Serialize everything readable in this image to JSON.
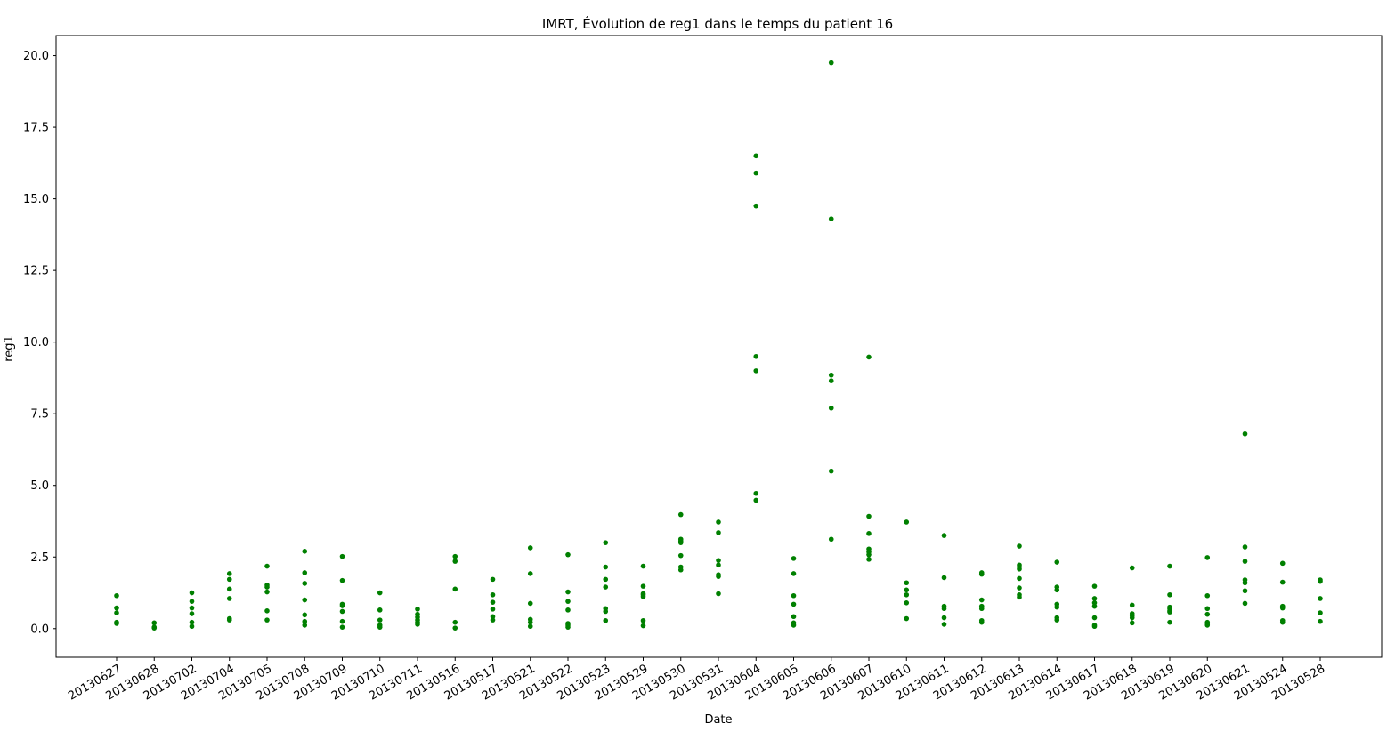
{
  "chart_data": {
    "type": "scatter",
    "title": "IMRT, Évolution de reg1 dans le temps du patient 16",
    "xlabel": "Date",
    "ylabel": "reg1",
    "ylim": [
      -1.0,
      20.7
    ],
    "yticks": [
      "0.0",
      "2.5",
      "5.0",
      "7.5",
      "10.0",
      "12.5",
      "15.0",
      "17.5",
      "20.0"
    ],
    "grid": false,
    "marker_color": "#008000",
    "categories": [
      "20130627",
      "20130628",
      "20130702",
      "20130704",
      "20130705",
      "20130708",
      "20130709",
      "20130710",
      "20130711",
      "20130516",
      "20130517",
      "20130521",
      "20130522",
      "20130523",
      "20130529",
      "20130530",
      "20130531",
      "20130604",
      "20130605",
      "20130606",
      "20130607",
      "20130610",
      "20130611",
      "20130612",
      "20130613",
      "20130614",
      "20130617",
      "20130618",
      "20130619",
      "20130620",
      "20130621",
      "20130524",
      "20130528"
    ],
    "series": [
      {
        "values": [
          [
            1.15,
            0.72,
            0.55,
            0.22,
            0.18
          ],
          [
            0.2,
            0.05,
            0.02
          ],
          [
            1.25,
            0.95,
            0.72,
            0.52,
            0.22,
            0.08
          ],
          [
            1.92,
            1.72,
            1.38,
            1.05,
            0.35,
            0.3
          ],
          [
            2.18,
            1.52,
            1.45,
            1.28,
            0.62,
            0.3
          ],
          [
            2.7,
            1.95,
            1.58,
            1.0,
            0.48,
            0.25,
            0.12
          ],
          [
            2.52,
            1.68,
            0.85,
            0.8,
            0.6,
            0.25,
            0.05
          ],
          [
            1.25,
            0.65,
            0.3,
            0.12,
            0.05
          ],
          [
            0.68,
            0.5,
            0.4,
            0.3,
            0.22,
            0.15
          ],
          [
            2.52,
            2.35,
            1.38,
            0.22,
            0.02
          ],
          [
            1.72,
            1.18,
            0.92,
            0.68,
            0.42,
            0.3
          ],
          [
            2.82,
            1.92,
            0.88,
            0.32,
            0.22,
            0.08
          ],
          [
            2.58,
            1.28,
            0.95,
            0.65,
            0.18,
            0.12,
            0.05
          ],
          [
            3.0,
            2.15,
            1.72,
            1.45,
            0.7,
            0.6,
            0.28
          ],
          [
            2.18,
            1.48,
            1.22,
            1.18,
            1.12,
            0.28,
            0.1
          ],
          [
            3.98,
            3.12,
            3.05,
            3.0,
            2.55,
            2.15,
            2.05
          ],
          [
            3.72,
            3.35,
            2.38,
            2.22,
            1.88,
            1.82,
            1.22
          ],
          [
            16.5,
            15.9,
            14.75,
            9.5,
            9.0,
            4.72,
            4.48
          ],
          [
            2.45,
            1.92,
            1.15,
            0.85,
            0.42,
            0.2,
            0.12
          ],
          [
            19.75,
            14.3,
            8.85,
            8.65,
            7.7,
            5.5,
            3.12
          ],
          [
            9.48,
            3.92,
            3.32,
            2.78,
            2.68,
            2.58,
            2.42
          ],
          [
            3.72,
            1.6,
            1.35,
            1.18,
            0.9,
            0.35
          ],
          [
            3.25,
            1.78,
            0.78,
            0.7,
            0.38,
            0.15
          ],
          [
            1.95,
            1.9,
            1.0,
            0.78,
            0.7,
            0.28,
            0.22
          ],
          [
            2.88,
            2.22,
            2.15,
            2.08,
            1.75,
            1.42,
            1.18,
            1.1
          ],
          [
            2.32,
            1.45,
            1.35,
            0.85,
            0.75,
            0.38,
            0.3
          ],
          [
            1.48,
            1.05,
            0.9,
            0.78,
            0.38,
            0.12,
            0.08
          ],
          [
            2.12,
            0.82,
            0.52,
            0.45,
            0.38,
            0.2
          ],
          [
            2.18,
            1.18,
            0.75,
            0.7,
            0.62,
            0.58,
            0.22
          ],
          [
            2.48,
            1.15,
            0.7,
            0.5,
            0.22,
            0.15,
            0.12
          ],
          [
            6.8,
            2.85,
            2.35,
            1.7,
            1.6,
            1.32,
            0.88
          ],
          [
            2.28,
            1.62,
            0.78,
            0.72,
            0.28,
            0.22
          ],
          [
            1.7,
            1.65,
            1.05,
            0.55,
            0.25
          ]
        ]
      }
    ]
  }
}
